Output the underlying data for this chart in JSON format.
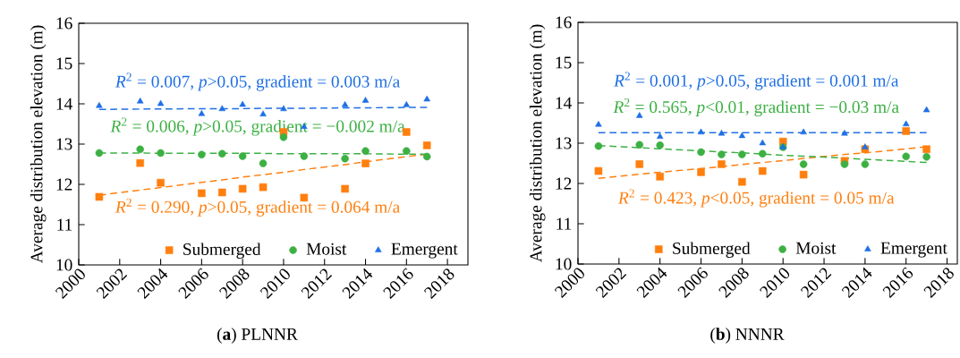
{
  "chart_data": [
    {
      "type": "scatter",
      "title": "(**a**) PLNNR",
      "ylabel": "Average distribution elevation (m)",
      "xlim": [
        2000,
        2019
      ],
      "ylim": [
        10,
        16
      ],
      "xticks": [
        2000,
        2002,
        2004,
        2006,
        2008,
        2010,
        2012,
        2014,
        2016,
        2018
      ],
      "yticks": [
        10,
        11,
        12,
        13,
        14,
        15,
        16
      ],
      "x": [
        2001,
        2003,
        2004,
        2006,
        2007,
        2008,
        2009,
        2010,
        2011,
        2013,
        2014,
        2016,
        2017
      ],
      "legend": "bottom right",
      "grid": false,
      "series": [
        {
          "name": "Submerged",
          "color": "#ff7f0e",
          "marker": "square",
          "values": [
            11.69,
            12.53,
            12.04,
            11.78,
            11.8,
            11.89,
            11.93,
            13.3,
            11.67,
            11.89,
            12.52,
            13.3,
            12.97
          ]
        },
        {
          "name": "Moist",
          "color": "#3cb043",
          "marker": "circle",
          "values": [
            12.78,
            12.87,
            12.78,
            12.74,
            12.76,
            12.7,
            12.52,
            13.17,
            12.7,
            12.64,
            12.83,
            12.83,
            12.69
          ]
        },
        {
          "name": "Emergent",
          "color": "#1f6fe5",
          "marker": "triangle",
          "values": [
            13.95,
            14.06,
            14.0,
            13.75,
            13.87,
            13.98,
            13.74,
            13.87,
            13.43,
            13.97,
            14.08,
            13.97,
            14.11
          ]
        },
        {
          "type": "line",
          "color": "#ff7f0e",
          "line_style": "dashed",
          "marker": "none",
          "values": [
            11.73,
            11.86,
            11.92,
            12.05,
            12.11,
            12.18,
            12.24,
            12.3,
            12.37,
            12.49,
            12.56,
            12.69,
            12.75
          ]
        },
        {
          "type": "line",
          "color": "#3cb043",
          "line_style": "dashed",
          "marker": "none",
          "values": [
            12.78,
            12.78,
            12.77,
            12.77,
            12.77,
            12.77,
            12.77,
            12.76,
            12.76,
            12.76,
            12.76,
            12.75,
            12.75
          ]
        },
        {
          "type": "line",
          "color": "#1f6fe5",
          "line_style": "dashed",
          "marker": "none",
          "values": [
            13.86,
            13.87,
            13.87,
            13.88,
            13.88,
            13.88,
            13.89,
            13.89,
            13.89,
            13.9,
            13.9,
            13.91,
            13.91
          ]
        }
      ],
      "annotations": [
        "*R*$^{2}$ = 0.290, *p*>0.05, gradient = 0.064 m/a",
        "*R*$^{2}$ = 0.006, *p*>0.05, gradient = −0.002 m/a",
        "*R*$^{2}$ = 0.007, *p*>0.05, gradient = 0.003 m/a"
      ]
    },
    {
      "type": "scatter",
      "title": "(**b**) NNNR",
      "ylabel": "Average distribution elevation (m)",
      "xlim": [
        2000,
        2018.5
      ],
      "ylim": [
        10,
        16
      ],
      "xticks": [
        2000,
        2002,
        2004,
        2006,
        2008,
        2010,
        2012,
        2014,
        2016,
        2018
      ],
      "yticks": [
        10,
        11,
        12,
        13,
        14,
        15,
        16
      ],
      "x": [
        2001,
        2003,
        2004,
        2006,
        2007,
        2008,
        2009,
        2010,
        2011,
        2013,
        2014,
        2016,
        2017
      ],
      "legend": "bottom right",
      "grid": false,
      "series": [
        {
          "name": "Submerged",
          "color": "#ff7f0e",
          "marker": "square",
          "values": [
            12.31,
            12.48,
            12.17,
            12.28,
            12.48,
            12.04,
            12.31,
            13.04,
            12.22,
            12.56,
            12.85,
            13.3,
            12.85
          ]
        },
        {
          "name": "Moist",
          "color": "#3cb043",
          "marker": "circle",
          "values": [
            12.93,
            12.96,
            12.95,
            12.78,
            12.72,
            12.72,
            12.74,
            12.9,
            12.48,
            12.48,
            12.48,
            12.67,
            12.66
          ]
        },
        {
          "name": "Emergent",
          "color": "#1f6fe5",
          "marker": "triangle",
          "values": [
            13.46,
            13.68,
            13.16,
            13.27,
            13.24,
            13.18,
            13.0,
            12.9,
            13.27,
            13.24,
            12.9,
            13.47,
            13.82
          ]
        },
        {
          "type": "line",
          "color": "#ff7f0e",
          "line_style": "dashed",
          "marker": "none",
          "values": [
            12.13,
            12.23,
            12.28,
            12.37,
            12.42,
            12.47,
            12.52,
            12.57,
            12.62,
            12.72,
            12.76,
            12.86,
            12.91
          ]
        },
        {
          "type": "line",
          "color": "#3cb043",
          "line_style": "dashed",
          "marker": "none",
          "values": [
            12.94,
            12.89,
            12.86,
            12.81,
            12.78,
            12.76,
            12.73,
            12.7,
            12.68,
            12.63,
            12.6,
            12.55,
            12.52
          ]
        },
        {
          "type": "line",
          "color": "#1f6fe5",
          "line_style": "dashed",
          "marker": "none",
          "values": [
            13.26,
            13.26,
            13.26,
            13.26,
            13.26,
            13.26,
            13.26,
            13.26,
            13.26,
            13.26,
            13.26,
            13.26,
            13.26
          ]
        }
      ],
      "annotations": [
        "*R*$^{2}$ = 0.423, *p*<0.05, gradient = 0.05 m/a",
        "*R*$^{2}$ = 0.565, *p*<0.01, gradient = −0.03 m/a",
        "*R*$^{2}$ = 0.001, *p*>0.05, gradient = 0.001 m/a"
      ]
    }
  ]
}
